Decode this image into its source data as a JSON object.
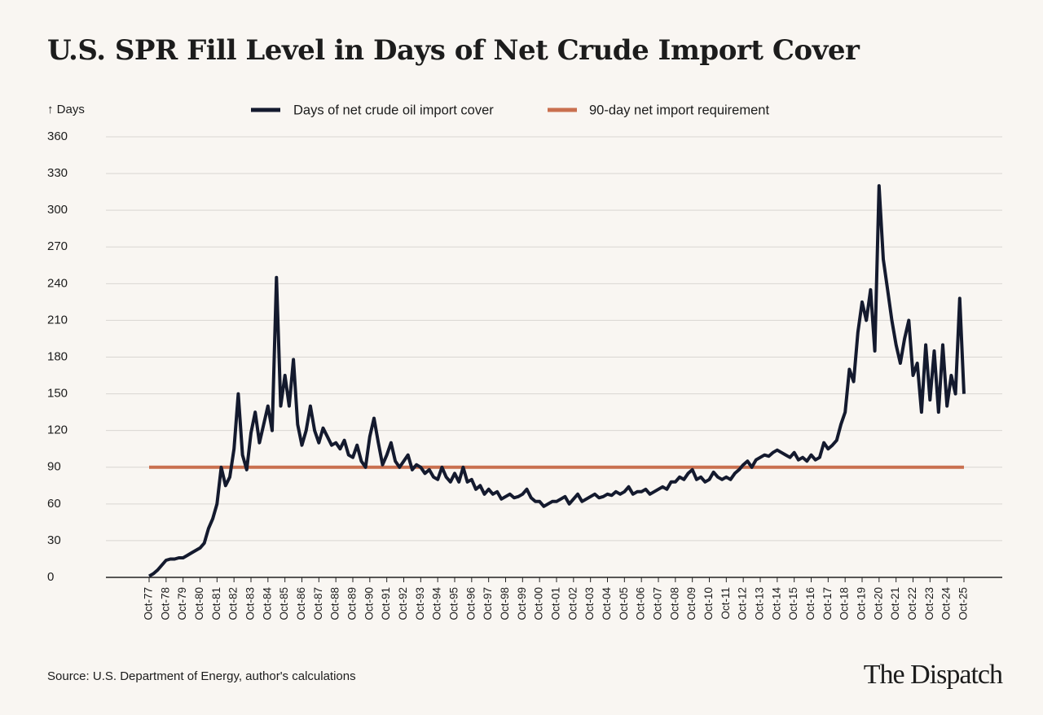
{
  "chart_data": {
    "type": "line",
    "title": "U.S. SPR Fill Level in Days of Net Crude Import Cover",
    "y_label": "↑ Days",
    "source": "Source: U.S. Department of Energy, author's calculations",
    "brand": "The Dispatch",
    "categories": [
      "Oct-77",
      null,
      null,
      null,
      "Oct-78",
      null,
      null,
      null,
      "Oct-79",
      null,
      null,
      null,
      "Oct-80",
      null,
      null,
      null,
      "Oct-81",
      null,
      null,
      null,
      "Oct-82",
      null,
      null,
      null,
      "Oct-83",
      null,
      null,
      null,
      "Oct-84",
      null,
      null,
      null,
      "Oct-85",
      null,
      null,
      null,
      "Oct-86",
      null,
      null,
      null,
      "Oct-87",
      null,
      null,
      null,
      "Oct-88",
      null,
      null,
      null,
      "Oct-89",
      null,
      null,
      null,
      "Oct-90",
      null,
      null,
      null,
      "Oct-91",
      null,
      null,
      null,
      "Oct-92",
      null,
      null,
      null,
      "Oct-93",
      null,
      null,
      null,
      "Oct-94",
      null,
      null,
      null,
      "Oct-95",
      null,
      null,
      null,
      "Oct-96",
      null,
      null,
      null,
      "Oct-97",
      null,
      null,
      null,
      "Oct-98",
      null,
      null,
      null,
      "Oct-99",
      null,
      null,
      null,
      "Oct-00",
      null,
      null,
      null,
      "Oct-01",
      null,
      null,
      null,
      "Oct-02",
      null,
      null,
      null,
      "Oct-03",
      null,
      null,
      null,
      "Oct-04",
      null,
      null,
      null,
      "Oct-05",
      null,
      null,
      null,
      "Oct-06",
      null,
      null,
      null,
      "Oct-07",
      null,
      null,
      null,
      "Oct-08",
      null,
      null,
      null,
      "Oct-09",
      null,
      null,
      null,
      "Oct-10",
      null,
      null,
      null,
      "Oct-11",
      null,
      null,
      null,
      "Oct-12",
      null,
      null,
      null,
      "Oct-13",
      null,
      null,
      null,
      "Oct-14",
      null,
      null,
      null,
      "Oct-15",
      null,
      null,
      null,
      "Oct-16",
      null,
      null,
      null,
      "Oct-17",
      null,
      null,
      null,
      "Oct-18",
      null,
      null,
      null,
      "Oct-19",
      null,
      null,
      null,
      "Oct-20",
      null,
      null,
      null,
      "Oct-21",
      null,
      null,
      null,
      "Oct-22",
      null,
      null,
      null,
      "Oct-23",
      null,
      null,
      null,
      "Oct-24",
      null,
      null,
      null,
      "Oct-25"
    ],
    "series": [
      {
        "name": "Days of net crude oil import cover",
        "color": "#141a2e",
        "values": [
          1,
          3,
          6,
          10,
          14,
          15,
          15,
          16,
          16,
          18,
          20,
          22,
          24,
          28,
          40,
          48,
          60,
          90,
          75,
          82,
          105,
          150,
          100,
          88,
          118,
          135,
          110,
          125,
          140,
          120,
          245,
          140,
          165,
          140,
          178,
          125,
          108,
          120,
          140,
          120,
          110,
          122,
          115,
          108,
          110,
          105,
          112,
          100,
          98,
          108,
          95,
          90,
          115,
          130,
          110,
          92,
          100,
          110,
          95,
          90,
          95,
          100,
          88,
          92,
          90,
          85,
          88,
          82,
          80,
          90,
          82,
          78,
          85,
          78,
          90,
          78,
          80,
          72,
          75,
          68,
          72,
          68,
          70,
          64,
          66,
          68,
          65,
          66,
          68,
          72,
          65,
          62,
          62,
          58,
          60,
          62,
          62,
          64,
          66,
          60,
          64,
          68,
          62,
          64,
          66,
          68,
          65,
          66,
          68,
          67,
          70,
          68,
          70,
          74,
          68,
          70,
          70,
          72,
          68,
          70,
          72,
          74,
          72,
          78,
          78,
          82,
          80,
          85,
          88,
          80,
          82,
          78,
          80,
          86,
          82,
          80,
          82,
          80,
          85,
          88,
          92,
          95,
          90,
          96,
          98,
          100,
          99,
          102,
          104,
          102,
          100,
          98,
          102,
          96,
          98,
          95,
          100,
          96,
          98,
          110,
          105,
          108,
          112,
          125,
          135,
          170,
          160,
          200,
          225,
          210,
          235,
          185,
          320,
          260,
          235,
          210,
          190,
          175,
          195,
          210,
          165,
          175,
          135,
          190,
          145,
          185,
          135,
          190,
          140,
          165,
          150,
          228,
          150
        ]
      }
    ],
    "reference_line": {
      "name": "90-day net import requirement",
      "value": 90,
      "color": "#c9704f"
    },
    "ylim": [
      0,
      360
    ],
    "yticks": [
      0,
      30,
      60,
      90,
      120,
      150,
      180,
      210,
      240,
      270,
      300,
      330,
      360
    ],
    "grid": true
  }
}
